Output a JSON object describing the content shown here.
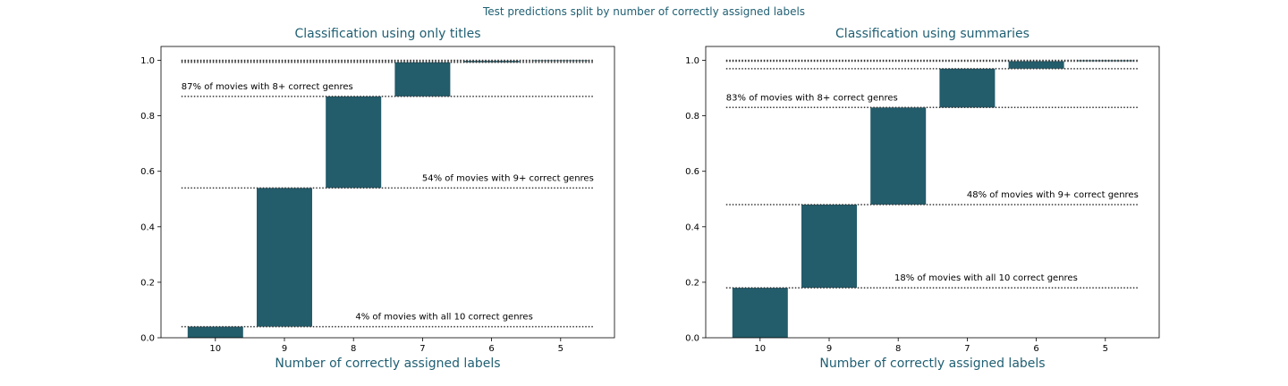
{
  "suptitle": "Test predictions split by number of correctly assigned labels",
  "colors": {
    "bar": "#235c6b",
    "title": "#1f5f73",
    "ref_line": "#333333"
  },
  "chart_data": [
    {
      "type": "bar",
      "subtype": "waterfall",
      "title": "Classification using only titles",
      "xlabel": "Number of correctly assigned labels",
      "ylabel": "",
      "categories": [
        "10",
        "9",
        "8",
        "7",
        "6",
        "5"
      ],
      "cumulative_low": [
        0.0,
        0.04,
        0.54,
        0.87,
        0.993,
        0.998
      ],
      "cumulative_high": [
        0.04,
        0.54,
        0.87,
        0.993,
        0.998,
        1.0
      ],
      "ylim": [
        0,
        1.05
      ],
      "yticks": [
        "0.0",
        "0.2",
        "0.4",
        "0.6",
        "0.8",
        "1.0"
      ],
      "grid": false,
      "ref_lines": [
        0.04,
        0.54,
        0.87,
        0.993,
        0.998
      ],
      "annotations": [
        {
          "text": "4% of movies with all 10 correct genres",
          "y": 0.04,
          "anchor": "right"
        },
        {
          "text": "54% of movies with 9+ correct genres",
          "y": 0.54,
          "anchor": "far-right"
        },
        {
          "text": "87% of movies with 8+ correct genres",
          "y": 0.87,
          "anchor": "left"
        }
      ]
    },
    {
      "type": "bar",
      "subtype": "waterfall",
      "title": "Classification using summaries",
      "xlabel": "Number of correctly assigned labels",
      "ylabel": "",
      "categories": [
        "10",
        "9",
        "8",
        "7",
        "6",
        "5"
      ],
      "cumulative_low": [
        0.0,
        0.18,
        0.48,
        0.83,
        0.97,
        0.997
      ],
      "cumulative_high": [
        0.18,
        0.48,
        0.83,
        0.97,
        0.997,
        1.0
      ],
      "ylim": [
        0,
        1.05
      ],
      "yticks": [
        "0.0",
        "0.2",
        "0.4",
        "0.6",
        "0.8",
        "1.0"
      ],
      "grid": false,
      "ref_lines": [
        0.18,
        0.48,
        0.83,
        0.97,
        0.997
      ],
      "annotations": [
        {
          "text": "18% of movies with all 10 correct genres",
          "y": 0.18,
          "anchor": "right"
        },
        {
          "text": "48% of movies with 9+ correct genres",
          "y": 0.48,
          "anchor": "far-right"
        },
        {
          "text": "83% of movies with 8+ correct genres",
          "y": 0.83,
          "anchor": "left"
        }
      ]
    }
  ]
}
